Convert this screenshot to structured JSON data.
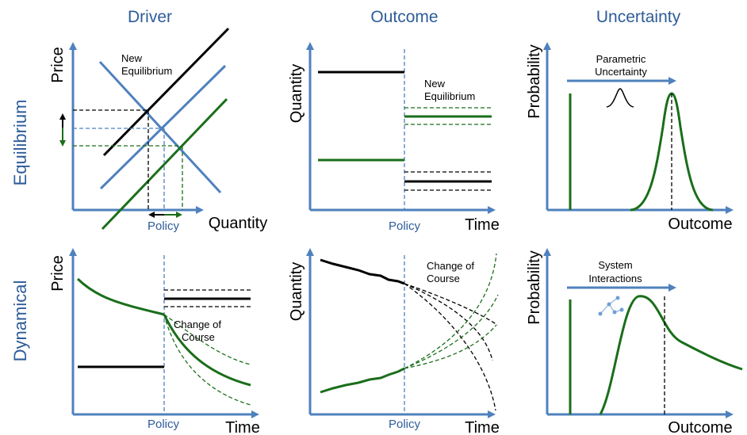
{
  "columns": {
    "driver": "Driver",
    "outcome": "Outcome",
    "uncertainty": "Uncertainty"
  },
  "rows": {
    "equilibrium": "Equilibrium",
    "dynamical": "Dynamical"
  },
  "panels": {
    "eq_driver": {
      "y_label": "Price",
      "x_label": "Quantity",
      "annotation_line1": "New",
      "annotation_line2": "Equilibrium",
      "policy_label": "Policy"
    },
    "eq_outcome": {
      "y_label": "Quantity",
      "x_label": "Time",
      "annotation_line1": "New",
      "annotation_line2": "Equilibrium",
      "policy_label": "Policy"
    },
    "eq_uncertainty": {
      "y_label": "Probability",
      "x_label": "Outcome",
      "annotation_line1": "Parametric",
      "annotation_line2": "Uncertainty"
    },
    "dyn_driver": {
      "y_label": "Price",
      "x_label": "Time",
      "annotation_line1": "Change of",
      "annotation_line2": "Course",
      "policy_label": "Policy"
    },
    "dyn_outcome": {
      "y_label": "Quantity",
      "x_label": "Time",
      "annotation_line1": "Change of",
      "annotation_line2": "Course",
      "policy_label": "Policy"
    },
    "dyn_uncertainty": {
      "y_label": "Probability",
      "x_label": "Outcome",
      "annotation_line1": "System",
      "annotation_line2": "Interactions"
    }
  },
  "colors": {
    "axis": "#4f81bd",
    "green": "#1a6e1a",
    "black": "#000000",
    "title": "#2e5c99"
  }
}
